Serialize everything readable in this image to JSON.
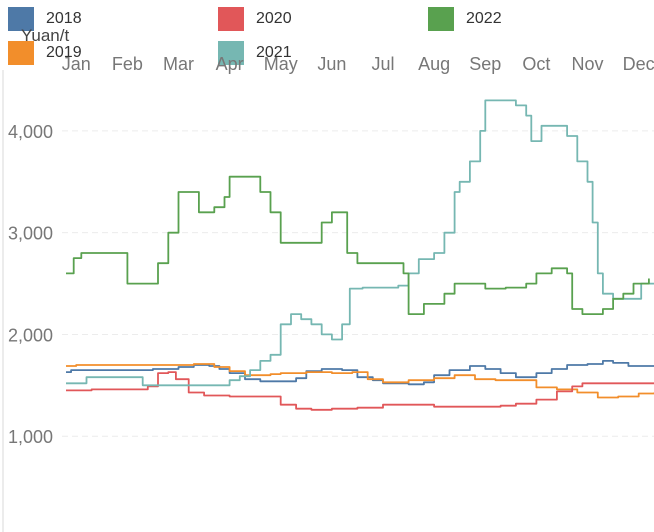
{
  "chart_data": {
    "type": "line",
    "ylabel": "Yuan/t",
    "xlabel": "",
    "ylim": [
      0,
      4500
    ],
    "yticks": [
      1000,
      2000,
      3000,
      4000
    ],
    "ytick_labels": [
      "1,000",
      "2,000",
      "3,000",
      "4,000"
    ],
    "categories": [
      "Jan",
      "Feb",
      "Mar",
      "Apr",
      "May",
      "Jun",
      "Jul",
      "Aug",
      "Sep",
      "Oct",
      "Nov",
      "Dec"
    ],
    "x_range": [
      0.8,
      12.3
    ],
    "x_axis_position": "top",
    "grid": true,
    "legend_position": "top",
    "series": [
      {
        "name": "2018",
        "color": "#4e79a7",
        "points": [
          [
            0.8,
            1630
          ],
          [
            0.9,
            1650
          ],
          [
            1.5,
            1650
          ],
          [
            2.0,
            1650
          ],
          [
            2.5,
            1660
          ],
          [
            3.0,
            1680
          ],
          [
            3.3,
            1700
          ],
          [
            3.6,
            1690
          ],
          [
            3.8,
            1660
          ],
          [
            4.0,
            1620
          ],
          [
            4.3,
            1560
          ],
          [
            4.6,
            1540
          ],
          [
            5.0,
            1540
          ],
          [
            5.3,
            1570
          ],
          [
            5.5,
            1640
          ],
          [
            5.8,
            1660
          ],
          [
            6.2,
            1650
          ],
          [
            6.5,
            1580
          ],
          [
            6.8,
            1550
          ],
          [
            7.0,
            1520
          ],
          [
            7.5,
            1510
          ],
          [
            7.8,
            1530
          ],
          [
            8.0,
            1600
          ],
          [
            8.3,
            1650
          ],
          [
            8.7,
            1690
          ],
          [
            9.0,
            1660
          ],
          [
            9.3,
            1620
          ],
          [
            9.6,
            1580
          ],
          [
            10.0,
            1620
          ],
          [
            10.3,
            1660
          ],
          [
            10.6,
            1700
          ],
          [
            11.0,
            1710
          ],
          [
            11.3,
            1740
          ],
          [
            11.5,
            1720
          ],
          [
            11.8,
            1690
          ],
          [
            12.3,
            1690
          ]
        ]
      },
      {
        "name": "2019",
        "color": "#f28e2b",
        "points": [
          [
            0.8,
            1690
          ],
          [
            1.0,
            1700
          ],
          [
            2.0,
            1700
          ],
          [
            3.0,
            1700
          ],
          [
            3.3,
            1710
          ],
          [
            3.7,
            1680
          ],
          [
            4.0,
            1640
          ],
          [
            4.3,
            1600
          ],
          [
            4.8,
            1610
          ],
          [
            5.0,
            1620
          ],
          [
            5.5,
            1630
          ],
          [
            6.0,
            1620
          ],
          [
            6.4,
            1630
          ],
          [
            6.7,
            1560
          ],
          [
            7.0,
            1530
          ],
          [
            7.5,
            1550
          ],
          [
            8.0,
            1570
          ],
          [
            8.4,
            1600
          ],
          [
            8.8,
            1560
          ],
          [
            9.2,
            1550
          ],
          [
            9.6,
            1550
          ],
          [
            10.0,
            1480
          ],
          [
            10.4,
            1460
          ],
          [
            10.8,
            1430
          ],
          [
            11.2,
            1380
          ],
          [
            11.6,
            1390
          ],
          [
            12.0,
            1420
          ],
          [
            12.3,
            1430
          ]
        ]
      },
      {
        "name": "2020",
        "color": "#e15759",
        "points": [
          [
            0.8,
            1450
          ],
          [
            1.3,
            1460
          ],
          [
            2.0,
            1460
          ],
          [
            2.4,
            1490
          ],
          [
            2.6,
            1620
          ],
          [
            2.8,
            1630
          ],
          [
            2.95,
            1560
          ],
          [
            3.2,
            1430
          ],
          [
            3.5,
            1400
          ],
          [
            4.0,
            1390
          ],
          [
            4.5,
            1390
          ],
          [
            5.0,
            1310
          ],
          [
            5.3,
            1270
          ],
          [
            5.6,
            1260
          ],
          [
            6.0,
            1270
          ],
          [
            6.5,
            1280
          ],
          [
            7.0,
            1310
          ],
          [
            7.5,
            1310
          ],
          [
            8.0,
            1290
          ],
          [
            8.5,
            1290
          ],
          [
            9.0,
            1290
          ],
          [
            9.3,
            1300
          ],
          [
            9.6,
            1320
          ],
          [
            10.0,
            1360
          ],
          [
            10.4,
            1440
          ],
          [
            10.7,
            1490
          ],
          [
            10.9,
            1520
          ],
          [
            11.5,
            1520
          ],
          [
            12.3,
            1520
          ]
        ]
      },
      {
        "name": "2021",
        "color": "#76b7b2",
        "points": [
          [
            0.8,
            1520
          ],
          [
            1.0,
            1520
          ],
          [
            1.2,
            1580
          ],
          [
            1.8,
            1580
          ],
          [
            2.2,
            1580
          ],
          [
            2.3,
            1500
          ],
          [
            2.8,
            1500
          ],
          [
            3.3,
            1500
          ],
          [
            3.8,
            1500
          ],
          [
            4.0,
            1550
          ],
          [
            4.2,
            1590
          ],
          [
            4.4,
            1650
          ],
          [
            4.6,
            1740
          ],
          [
            4.8,
            1800
          ],
          [
            5.0,
            2100
          ],
          [
            5.2,
            2200
          ],
          [
            5.4,
            2150
          ],
          [
            5.6,
            2100
          ],
          [
            5.8,
            2000
          ],
          [
            6.0,
            1950
          ],
          [
            6.2,
            2100
          ],
          [
            6.35,
            2450
          ],
          [
            6.6,
            2460
          ],
          [
            7.0,
            2460
          ],
          [
            7.3,
            2480
          ],
          [
            7.5,
            2600
          ],
          [
            7.7,
            2740
          ],
          [
            8.0,
            2800
          ],
          [
            8.2,
            3000
          ],
          [
            8.4,
            3400
          ],
          [
            8.5,
            3500
          ],
          [
            8.7,
            3700
          ],
          [
            8.9,
            4000
          ],
          [
            9.0,
            4300
          ],
          [
            9.3,
            4300
          ],
          [
            9.6,
            4250
          ],
          [
            9.8,
            4150
          ],
          [
            9.9,
            3900
          ],
          [
            10.1,
            4050
          ],
          [
            10.5,
            4050
          ],
          [
            10.6,
            3950
          ],
          [
            10.8,
            3700
          ],
          [
            11.0,
            3500
          ],
          [
            11.1,
            3100
          ],
          [
            11.2,
            2600
          ],
          [
            11.3,
            2400
          ],
          [
            11.5,
            2350
          ],
          [
            12.0,
            2350
          ],
          [
            12.05,
            2500
          ],
          [
            12.3,
            2500
          ]
        ]
      },
      {
        "name": "2022",
        "color": "#59a14f",
        "points": [
          [
            0.8,
            2600
          ],
          [
            0.95,
            2750
          ],
          [
            1.1,
            2800
          ],
          [
            1.5,
            2800
          ],
          [
            1.9,
            2800
          ],
          [
            2.0,
            2500
          ],
          [
            2.5,
            2500
          ],
          [
            2.6,
            2700
          ],
          [
            2.8,
            3000
          ],
          [
            3.0,
            3400
          ],
          [
            3.2,
            3400
          ],
          [
            3.4,
            3200
          ],
          [
            3.7,
            3250
          ],
          [
            3.9,
            3350
          ],
          [
            4.0,
            3550
          ],
          [
            4.4,
            3550
          ],
          [
            4.6,
            3400
          ],
          [
            4.8,
            3200
          ],
          [
            5.0,
            2900
          ],
          [
            5.2,
            2900
          ],
          [
            5.6,
            2900
          ],
          [
            5.8,
            3100
          ],
          [
            6.0,
            3200
          ],
          [
            6.2,
            3200
          ],
          [
            6.3,
            2800
          ],
          [
            6.5,
            2700
          ],
          [
            7.0,
            2700
          ],
          [
            7.4,
            2600
          ],
          [
            7.5,
            2200
          ],
          [
            7.8,
            2300
          ],
          [
            8.0,
            2300
          ],
          [
            8.2,
            2400
          ],
          [
            8.4,
            2500
          ],
          [
            8.7,
            2500
          ],
          [
            9.0,
            2450
          ],
          [
            9.4,
            2460
          ],
          [
            9.8,
            2500
          ],
          [
            10.0,
            2600
          ],
          [
            10.3,
            2650
          ],
          [
            10.6,
            2600
          ],
          [
            10.7,
            2250
          ],
          [
            10.9,
            2200
          ],
          [
            11.1,
            2200
          ],
          [
            11.3,
            2250
          ],
          [
            11.5,
            2350
          ],
          [
            11.7,
            2400
          ],
          [
            11.9,
            2500
          ],
          [
            12.2,
            2550
          ]
        ]
      }
    ]
  }
}
